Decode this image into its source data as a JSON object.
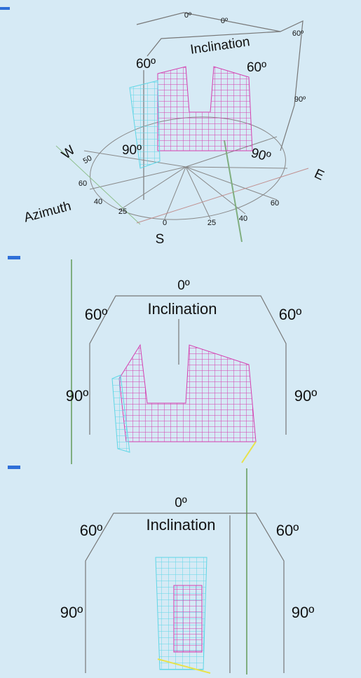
{
  "panels": [
    {
      "labels": [
        "0º",
        "0º",
        "Inclination",
        "60º",
        "60º",
        "60º",
        "90º",
        "90º",
        "90º",
        "W",
        "E",
        "S",
        "Azimuth",
        "50",
        "60",
        "40",
        "25",
        "0",
        "25",
        "40",
        "60"
      ]
    },
    {
      "labels": [
        "0º",
        "Inclination",
        "60º",
        "60º",
        "90º",
        "90º"
      ]
    },
    {
      "labels": [
        "0º",
        "Inclination",
        "60º",
        "60º",
        "90º",
        "90º"
      ]
    }
  ]
}
